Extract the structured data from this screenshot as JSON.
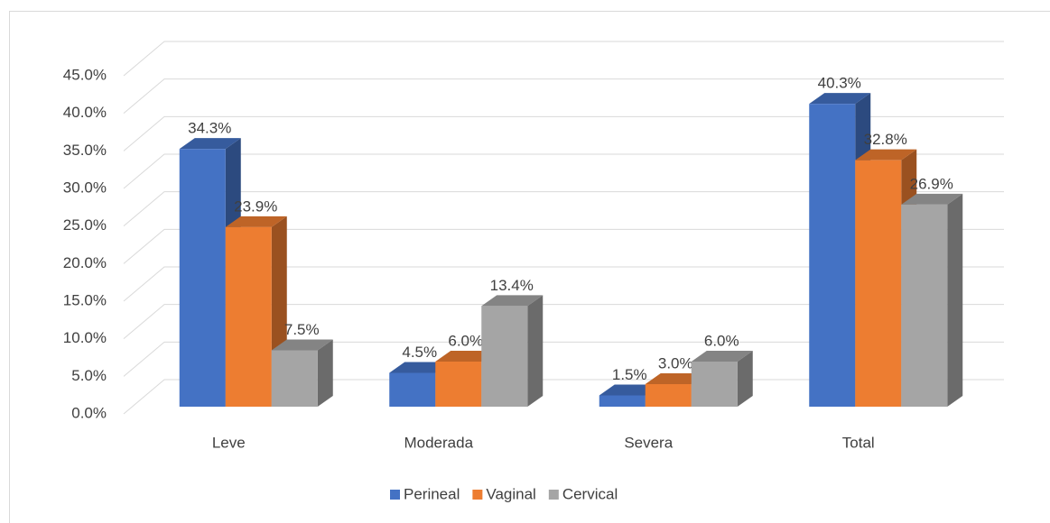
{
  "chart_data": {
    "type": "bar3d",
    "categories": [
      "Leve",
      "Moderada",
      "Severa",
      "Total"
    ],
    "series": [
      {
        "name": "Perineal",
        "color": "#4472c4",
        "values": [
          34.3,
          4.5,
          1.5,
          40.3
        ],
        "value_labels": [
          "34.3%",
          "4.5%",
          "1.5%",
          "40.3%"
        ]
      },
      {
        "name": "Vaginal",
        "color": "#ed7d31",
        "values": [
          23.9,
          6.0,
          3.0,
          32.8
        ],
        "value_labels": [
          "23.9%",
          "6.0%",
          "3.0%",
          "32.8%"
        ]
      },
      {
        "name": "Cervical",
        "color": "#a5a5a5",
        "values": [
          7.5,
          13.4,
          6.0,
          26.9
        ],
        "value_labels": [
          "7.5%",
          "13.4%",
          "6.0%",
          "26.9%"
        ]
      }
    ],
    "ylim": [
      0,
      45
    ],
    "yticks": [
      {
        "value": 0,
        "label": "0.0%"
      },
      {
        "value": 5,
        "label": "5.0%"
      },
      {
        "value": 10,
        "label": "10.0%"
      },
      {
        "value": 15,
        "label": "15.0%"
      },
      {
        "value": 20,
        "label": "20.0%"
      },
      {
        "value": 25,
        "label": "25.0%"
      },
      {
        "value": 30,
        "label": "30.0%"
      },
      {
        "value": 35,
        "label": "35.0%"
      },
      {
        "value": 40,
        "label": "40.0%"
      },
      {
        "value": 45,
        "label": "45.0%"
      }
    ],
    "grid": true,
    "legend": "bottom"
  }
}
